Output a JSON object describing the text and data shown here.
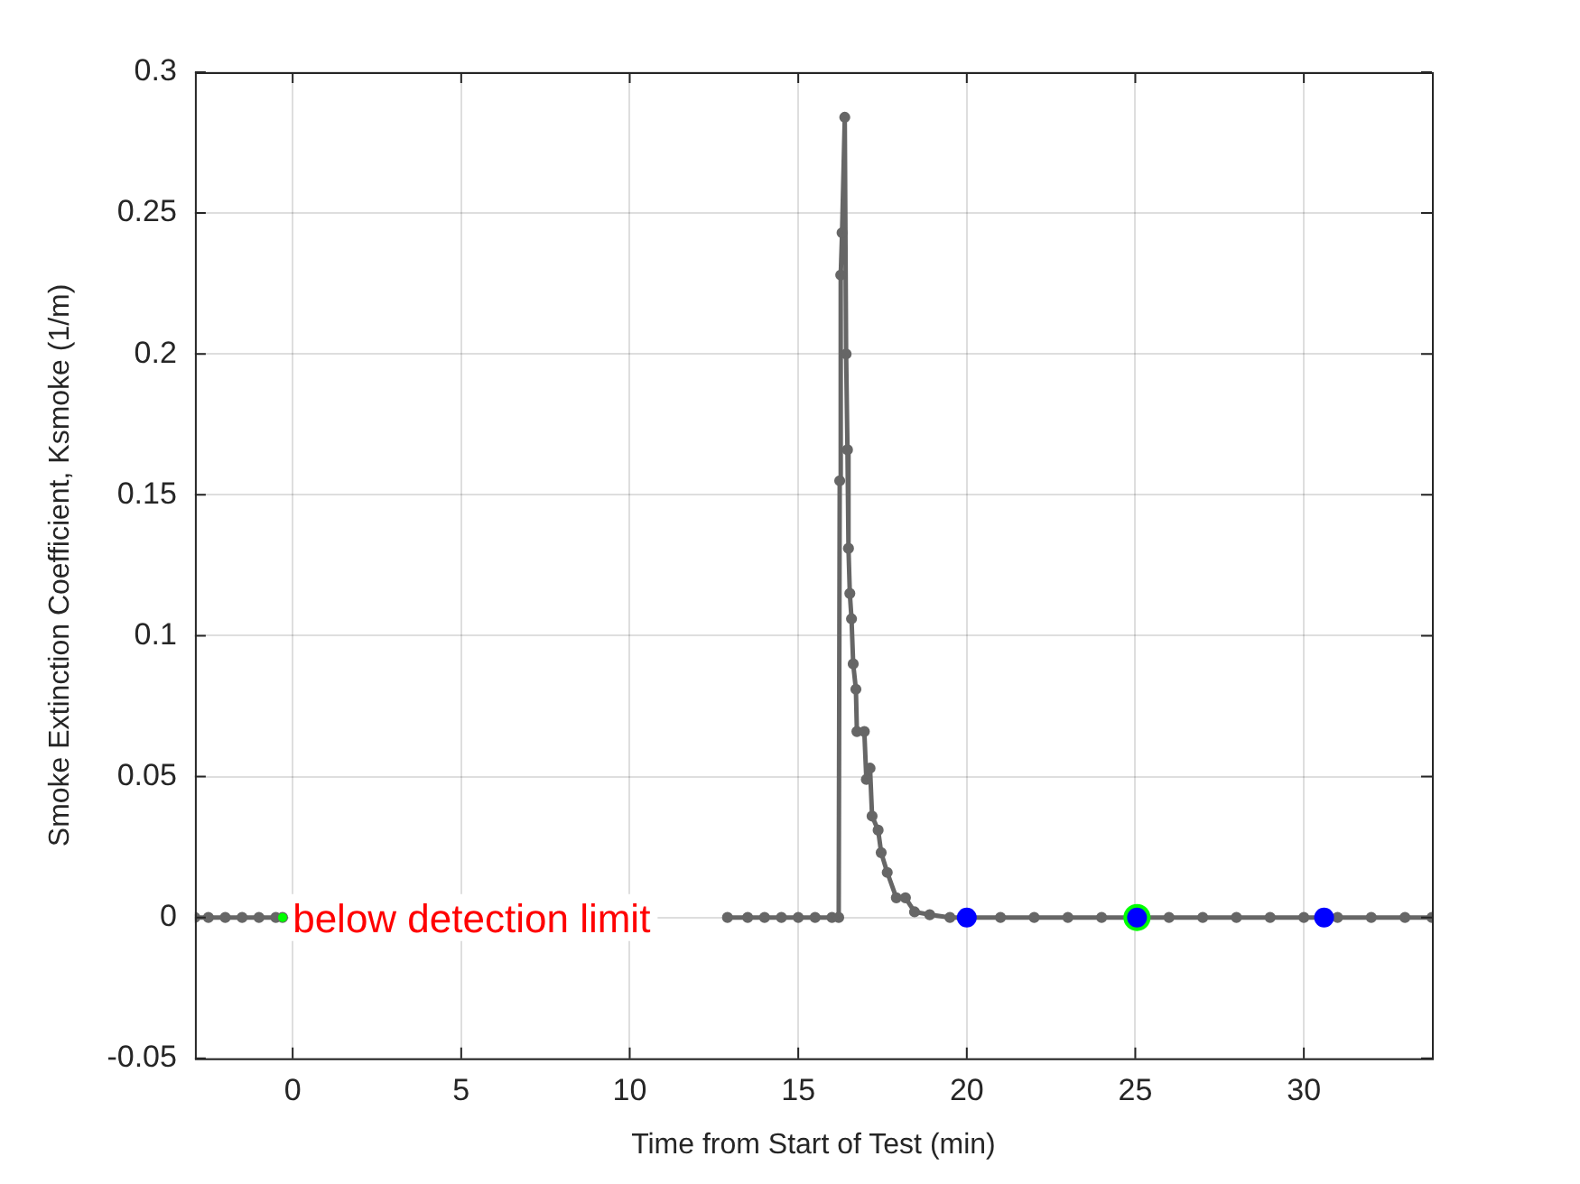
{
  "chart_data": {
    "type": "line",
    "xlabel": "Time from Start of Test (min)",
    "ylabel": "Smoke Extinction Coefficient, Ksmoke (1/m)",
    "xlim": [
      -2.9,
      33.8
    ],
    "ylim": [
      -0.05,
      0.3
    ],
    "xticks": [
      0,
      5,
      10,
      15,
      20,
      25,
      30
    ],
    "yticks": [
      -0.05,
      0,
      0.05,
      0.1,
      0.15,
      0.2,
      0.25,
      0.3
    ],
    "grid": true,
    "legend": false,
    "marker": "circle",
    "line_style": "solid",
    "annotations": [
      {
        "text": "below detection limit",
        "x": 0,
        "y": 0
      }
    ],
    "series": [
      {
        "color": "#666666",
        "x": [
          -2.9,
          -2.5,
          -2,
          -1.5,
          -1,
          -0.5,
          -0.3,
          6,
          12.9,
          13.5,
          14,
          14.5,
          15,
          15.5,
          16,
          16.2,
          16.23,
          16.26,
          16.3,
          16.38,
          16.42,
          16.46,
          16.49,
          16.53,
          16.58,
          16.63,
          16.71,
          16.74,
          16.96,
          17.02,
          17.13,
          17.19,
          17.37,
          17.46,
          17.64,
          17.91,
          18.18,
          18.45,
          18.9,
          19.5,
          20,
          21,
          22,
          23,
          24,
          25,
          26,
          27,
          28,
          29,
          30,
          31,
          32,
          33,
          33.8
        ],
        "values": [
          0,
          0,
          0,
          0,
          0,
          0,
          0,
          null,
          0,
          0,
          0,
          0,
          0,
          0,
          0,
          0,
          0.155,
          0.228,
          0.243,
          0.284,
          0.2,
          0.166,
          0.131,
          0.115,
          0.106,
          0.09,
          0.081,
          0.066,
          0.066,
          0.049,
          0.053,
          0.036,
          0.031,
          0.023,
          0.016,
          0.007,
          0.007,
          0.002,
          0.001,
          0,
          0,
          0,
          0,
          0,
          0,
          0,
          0,
          0,
          0,
          0,
          0,
          0,
          0,
          0,
          0
        ]
      },
      {
        "type": "scatter",
        "color": "#00ff00",
        "x": [
          -0.3,
          25.05
        ],
        "values": [
          0,
          0
        ]
      },
      {
        "type": "scatter",
        "color": "#0000ff",
        "x": [
          20,
          25.05,
          30.6
        ],
        "values": [
          0,
          0,
          0
        ]
      }
    ]
  }
}
